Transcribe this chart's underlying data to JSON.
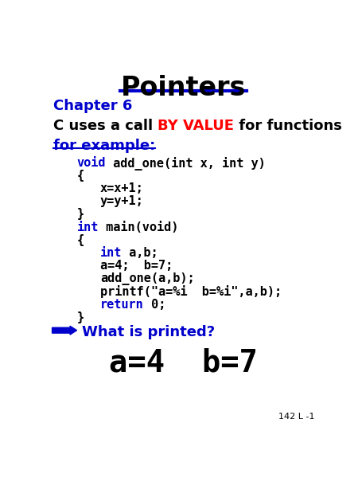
{
  "title": "Pointers",
  "title_color": "#000000",
  "title_underline_color": "#0000CC",
  "chapter": "Chapter 6",
  "chapter_color": "#0000CC",
  "byvalue_prefix": "C uses a call ",
  "byvalue_word": "BY VALUE",
  "byvalue_word_color": "#FF0000",
  "byvalue_suffix": " for functions",
  "byvalue_color": "#000000",
  "for_example": "for example:",
  "for_example_color": "#0000CC",
  "code_lines": [
    {
      "text": "void add_one(int x, int y)",
      "indent": 1,
      "keyword": "void"
    },
    {
      "text": "{",
      "indent": 1,
      "keyword": ""
    },
    {
      "text": "x=x+1;",
      "indent": 2,
      "keyword": ""
    },
    {
      "text": "y=y+1;",
      "indent": 2,
      "keyword": ""
    },
    {
      "text": "}",
      "indent": 1,
      "keyword": ""
    },
    {
      "text": "int main(void)",
      "indent": 1,
      "keyword": "int"
    },
    {
      "text": "{",
      "indent": 1,
      "keyword": ""
    },
    {
      "text": "int a,b;",
      "indent": 2,
      "keyword": "int"
    },
    {
      "text": "a=4;  b=7;",
      "indent": 2,
      "keyword": ""
    },
    {
      "text": "add_one(a,b);",
      "indent": 2,
      "keyword": ""
    },
    {
      "text": "printf(\"a=%i  b=%i\",a,b);",
      "indent": 2,
      "keyword": ""
    },
    {
      "text": "return 0;",
      "indent": 2,
      "keyword": "return"
    },
    {
      "text": "}",
      "indent": 1,
      "keyword": ""
    }
  ],
  "what_printed": "What is printed?",
  "what_printed_color": "#0000CC",
  "arrow_color": "#0000CC",
  "answer": "a=4  b=7",
  "answer_color": "#000000",
  "footer": "142 L -1",
  "footer_color": "#000000",
  "bg_color": "#FFFFFF"
}
